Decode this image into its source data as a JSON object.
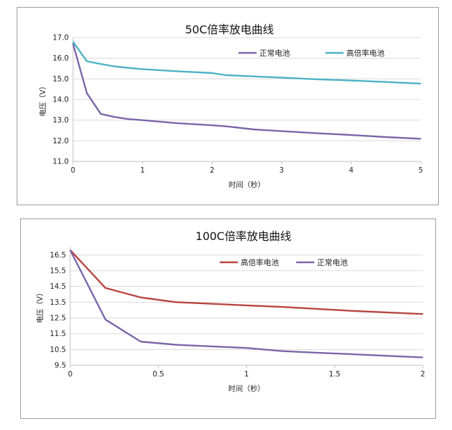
{
  "chart_data": [
    {
      "type": "line",
      "title": "50C倍率放电曲线",
      "xlabel": "时间（秒）",
      "ylabel": "电压（V）",
      "xlim": [
        0,
        5
      ],
      "ylim": [
        11.0,
        17.0
      ],
      "x_ticks": [
        "0",
        "1",
        "2",
        "3",
        "4",
        "5"
      ],
      "y_ticks": [
        "11.0",
        "12.0",
        "13.0",
        "14.0",
        "15.0",
        "16.0",
        "17.0"
      ],
      "grid": "horizontal",
      "legend_position": "top-right",
      "series": [
        {
          "name": "正常电池",
          "color": "#7b64a8",
          "x": [
            0,
            0.2,
            0.4,
            0.6,
            0.8,
            1.0,
            1.5,
            2.0,
            2.2,
            2.6,
            3.0,
            3.5,
            4.0,
            4.5,
            5.0
          ],
          "y": [
            16.7,
            14.3,
            13.3,
            13.15,
            13.05,
            13.0,
            12.85,
            12.75,
            12.7,
            12.55,
            12.47,
            12.37,
            12.28,
            12.18,
            12.1
          ]
        },
        {
          "name": "高倍率电池",
          "color": "#4ab1c4",
          "x": [
            0,
            0.2,
            0.4,
            0.6,
            0.8,
            1.0,
            1.5,
            2.0,
            2.2,
            2.6,
            3.0,
            3.5,
            4.0,
            4.5,
            5.0
          ],
          "y": [
            16.8,
            15.85,
            15.72,
            15.6,
            15.53,
            15.47,
            15.37,
            15.28,
            15.18,
            15.12,
            15.06,
            14.98,
            14.92,
            14.85,
            14.77
          ]
        }
      ]
    },
    {
      "type": "line",
      "title": "100C倍率放电曲线",
      "xlabel": "时间（秒）",
      "ylabel": "电压（V）",
      "xlim": [
        0,
        2
      ],
      "ylim": [
        9.5,
        17.0
      ],
      "x_ticks": [
        "0",
        "0.5",
        "1",
        "1.5",
        "2"
      ],
      "y_ticks": [
        "9.5",
        "10.5",
        "11.5",
        "12.5",
        "13.5",
        "14.5",
        "15.5",
        "16.5"
      ],
      "grid": "horizontal",
      "legend_position": "top-right",
      "series": [
        {
          "name": "高倍率电池",
          "color": "#b8433f",
          "x": [
            0,
            0.2,
            0.4,
            0.6,
            0.8,
            1.0,
            1.2,
            1.4,
            1.6,
            1.8,
            2.0
          ],
          "y": [
            16.8,
            14.4,
            13.8,
            13.5,
            13.4,
            13.3,
            13.2,
            13.08,
            12.95,
            12.85,
            12.75
          ]
        },
        {
          "name": "正常电池",
          "color": "#7b64a8",
          "x": [
            0,
            0.2,
            0.4,
            0.6,
            0.8,
            1.0,
            1.2,
            1.4,
            1.6,
            1.8,
            2.0
          ],
          "y": [
            16.8,
            12.4,
            11.0,
            10.8,
            10.7,
            10.6,
            10.4,
            10.3,
            10.2,
            10.1,
            10.0
          ]
        }
      ]
    }
  ]
}
